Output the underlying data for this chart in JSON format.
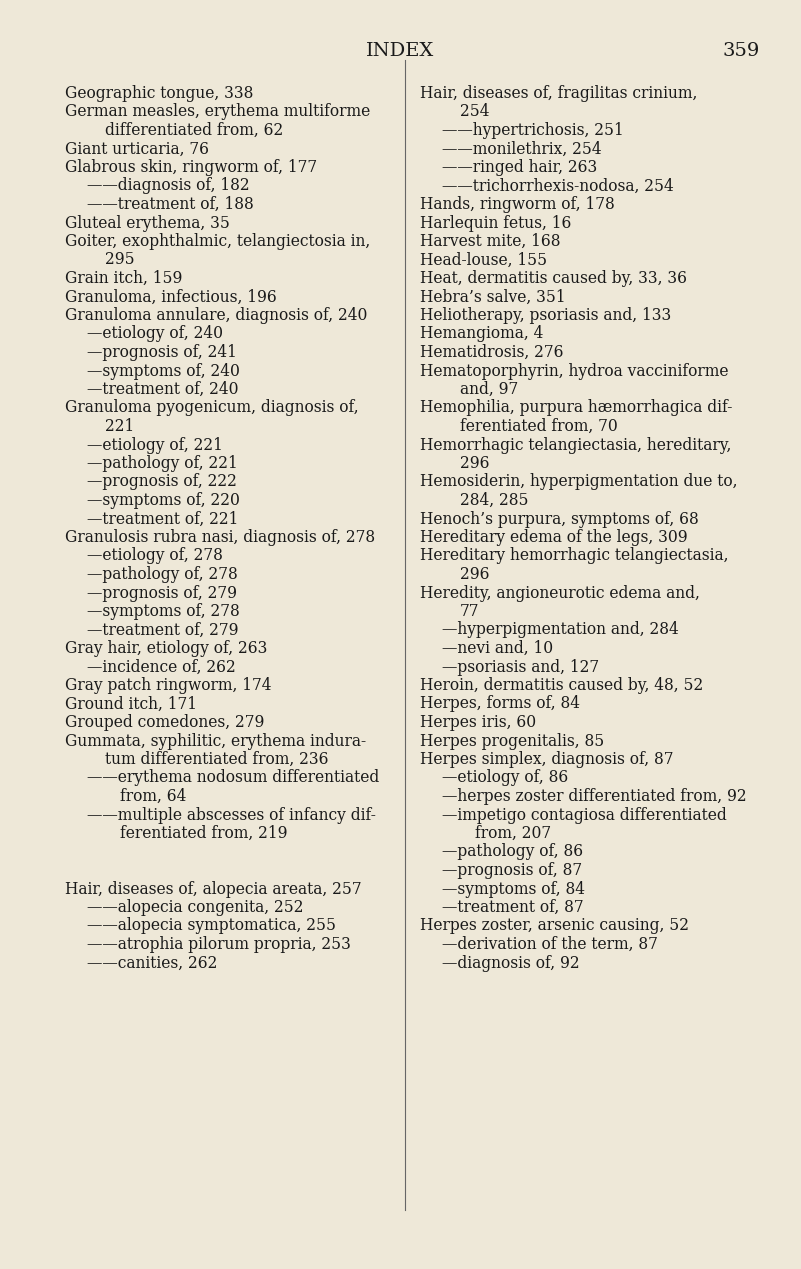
{
  "bg_color": "#eee8d8",
  "title": "INDEX",
  "page_number": "359",
  "title_fontsize": 14,
  "body_fontsize": 11.2,
  "left_column": [
    {
      "text": "Geographic tongue, 338",
      "indent": 0
    },
    {
      "text": "German measles, erythema multiforme",
      "indent": 0
    },
    {
      "text": "differentiated from, 62",
      "indent": 1
    },
    {
      "text": "Giant urticaria, 76",
      "indent": 0
    },
    {
      "text": "Glabrous skin, ringworm of, 177",
      "indent": 0
    },
    {
      "text": "——diagnosis of, 182",
      "indent": 2
    },
    {
      "text": "——treatment of, 188",
      "indent": 2
    },
    {
      "text": "Gluteal erythema, 35",
      "indent": 0
    },
    {
      "text": "Goiter, exophthalmic, telangiectosia in,",
      "indent": 0
    },
    {
      "text": "295",
      "indent": 1
    },
    {
      "text": "Grain itch, 159",
      "indent": 0
    },
    {
      "text": "Granuloma, infectious, 196",
      "indent": 0
    },
    {
      "text": "Granuloma annulare, diagnosis of, 240",
      "indent": 0
    },
    {
      "text": "—etiology of, 240",
      "indent": 2
    },
    {
      "text": "—prognosis of, 241",
      "indent": 2
    },
    {
      "text": "—symptoms of, 240",
      "indent": 2
    },
    {
      "text": "—treatment of, 240",
      "indent": 2
    },
    {
      "text": "Granuloma pyogenicum, diagnosis of,",
      "indent": 0
    },
    {
      "text": "221",
      "indent": 1
    },
    {
      "text": "—etiology of, 221",
      "indent": 2
    },
    {
      "text": "—pathology of, 221",
      "indent": 2
    },
    {
      "text": "—prognosis of, 222",
      "indent": 2
    },
    {
      "text": "—symptoms of, 220",
      "indent": 2
    },
    {
      "text": "—treatment of, 221",
      "indent": 2
    },
    {
      "text": "Granulosis rubra nasi, diagnosis of, 278",
      "indent": 0
    },
    {
      "text": "—etiology of, 278",
      "indent": 2
    },
    {
      "text": "—pathology of, 278",
      "indent": 2
    },
    {
      "text": "—prognosis of, 279",
      "indent": 2
    },
    {
      "text": "—symptoms of, 278",
      "indent": 2
    },
    {
      "text": "—treatment of, 279",
      "indent": 2
    },
    {
      "text": "Gray hair, etiology of, 263",
      "indent": 0
    },
    {
      "text": "—incidence of, 262",
      "indent": 2
    },
    {
      "text": "Gray patch ringworm, 174",
      "indent": 0
    },
    {
      "text": "Ground itch, 171",
      "indent": 0
    },
    {
      "text": "Grouped comedones, 279",
      "indent": 0
    },
    {
      "text": "Gummata, syphilitic, erythema indura-",
      "indent": 0
    },
    {
      "text": "tum differentiated from, 236",
      "indent": 1
    },
    {
      "text": "——erythema nodosum differentiated",
      "indent": 2
    },
    {
      "text": "from, 64",
      "indent": 3
    },
    {
      "text": "——multiple abscesses of infancy dif-",
      "indent": 2
    },
    {
      "text": "ferentiated from, 219",
      "indent": 3
    },
    {
      "text": "",
      "indent": 0
    },
    {
      "text": "",
      "indent": 0
    },
    {
      "text": "Hair, diseases of, alopecia areata, 257",
      "indent": 0
    },
    {
      "text": "——alopecia congenita, 252",
      "indent": 2
    },
    {
      "text": "——alopecia symptomatica, 255",
      "indent": 2
    },
    {
      "text": "——atrophia pilorum propria, 253",
      "indent": 2
    },
    {
      "text": "——canities, 262",
      "indent": 2
    }
  ],
  "right_column": [
    {
      "text": "Hair, diseases of, fragilitas crinium,",
      "indent": 0
    },
    {
      "text": "254",
      "indent": 1
    },
    {
      "text": "——hypertrichosis, 251",
      "indent": 2
    },
    {
      "text": "——monilethrix, 254",
      "indent": 2
    },
    {
      "text": "——ringed hair, 263",
      "indent": 2
    },
    {
      "text": "——trichorrhexis­nodosa, 254",
      "indent": 2
    },
    {
      "text": "Hands, ringworm of, 178",
      "indent": 0
    },
    {
      "text": "Harlequin fetus, 16",
      "indent": 0
    },
    {
      "text": "Harvest mite, 168",
      "indent": 0
    },
    {
      "text": "Head-louse, 155",
      "indent": 0
    },
    {
      "text": "Heat, dermatitis caused by, 33, 36",
      "indent": 0
    },
    {
      "text": "Hebra’s salve, 351",
      "indent": 0
    },
    {
      "text": "Heliotherapy, psoriasis and, 133",
      "indent": 0
    },
    {
      "text": "Hemangioma, 4",
      "indent": 0
    },
    {
      "text": "Hematidrosis, 276",
      "indent": 0
    },
    {
      "text": "Hematoporphyrin, hydroa vacciniforme",
      "indent": 0
    },
    {
      "text": "and, 97",
      "indent": 1
    },
    {
      "text": "Hemophilia, purpura hæmorrhagica dif-",
      "indent": 0
    },
    {
      "text": "ferentiated from, 70",
      "indent": 1
    },
    {
      "text": "Hemorrhagic telangiectasia, hereditary,",
      "indent": 0
    },
    {
      "text": "296",
      "indent": 1
    },
    {
      "text": "Hemosiderin, hyperpigmentation due to,",
      "indent": 0
    },
    {
      "text": "284, 285",
      "indent": 1
    },
    {
      "text": "Henoch’s purpura, symptoms of, 68",
      "indent": 0
    },
    {
      "text": "Hereditary edema of the legs, 309",
      "indent": 0
    },
    {
      "text": "Hereditary hemorrhagic telangiectasia,",
      "indent": 0
    },
    {
      "text": "296",
      "indent": 1
    },
    {
      "text": "Heredity, angioneurotic edema and,",
      "indent": 0
    },
    {
      "text": "77",
      "indent": 1
    },
    {
      "text": "—hyperpigmentation and, 284",
      "indent": 2
    },
    {
      "text": "—nevi and, 10",
      "indent": 2
    },
    {
      "text": "—psoriasis and, 127",
      "indent": 2
    },
    {
      "text": "Heroin, dermatitis caused by, 48, 52",
      "indent": 0
    },
    {
      "text": "Herpes, forms of, 84",
      "indent": 0
    },
    {
      "text": "Herpes iris, 60",
      "indent": 0
    },
    {
      "text": "Herpes progenitalis, 85",
      "indent": 0
    },
    {
      "text": "Herpes simplex, diagnosis of, 87",
      "indent": 0
    },
    {
      "text": "—etiology of, 86",
      "indent": 2
    },
    {
      "text": "—herpes zoster differentiated from, 92",
      "indent": 2
    },
    {
      "text": "—impetigo contagiosa differentiated",
      "indent": 2
    },
    {
      "text": "from, 207",
      "indent": 3
    },
    {
      "text": "—pathology of, 86",
      "indent": 2
    },
    {
      "text": "—prognosis of, 87",
      "indent": 2
    },
    {
      "text": "—symptoms of, 84",
      "indent": 2
    },
    {
      "text": "—treatment of, 87",
      "indent": 2
    },
    {
      "text": "Herpes zoster, arsenic causing, 52",
      "indent": 0
    },
    {
      "text": "—derivation of the term, 87",
      "indent": 2
    },
    {
      "text": "—diagnosis of, 92",
      "indent": 2
    }
  ]
}
